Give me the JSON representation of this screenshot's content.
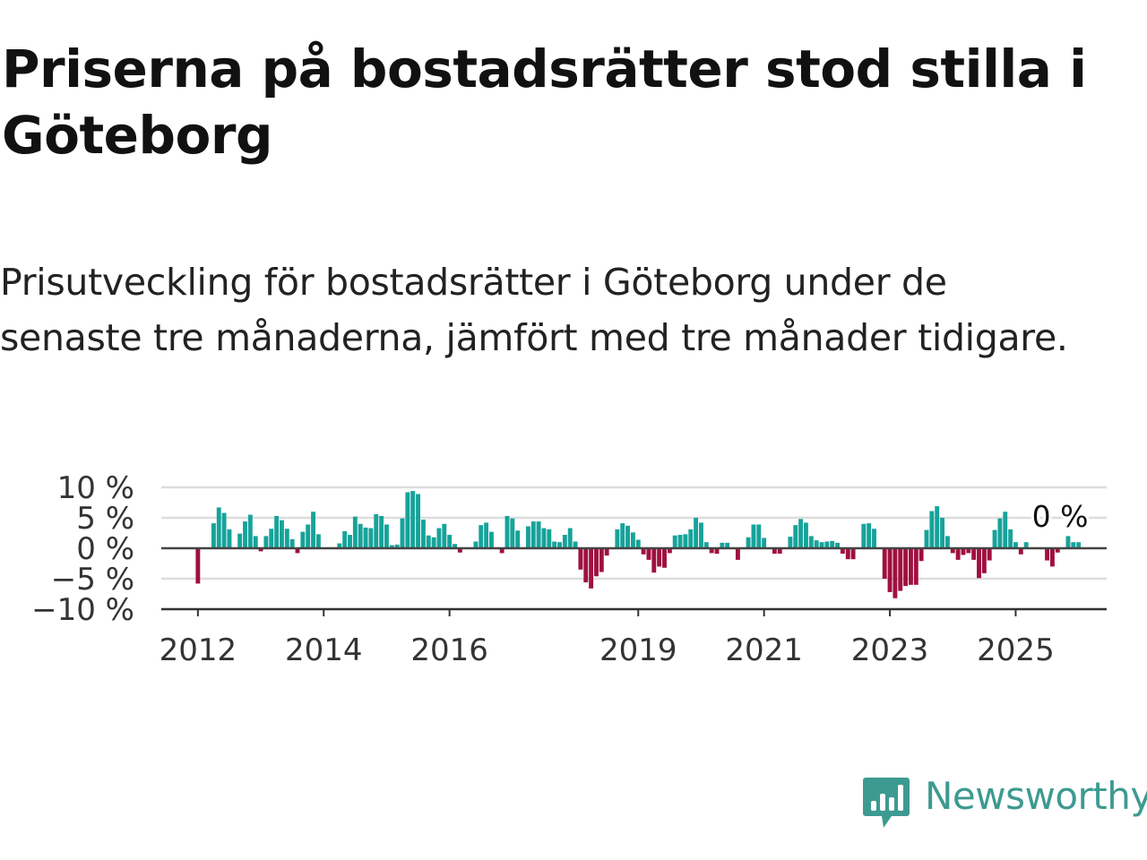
{
  "header": {
    "title": "Priserna på bostadsrätter stod stilla i Göteborg",
    "subtitle": "Prisutveckling för bostadsrätter i Göteborg under de senaste tre månaderna, jämfört med tre månader tidigare."
  },
  "brand": {
    "name": "Newsworthy",
    "color": "#3d9a90",
    "icon": "newsworthy-bar-chart-bubble-icon"
  },
  "colors": {
    "positive": "#16a39a",
    "negative": "#a0103f",
    "grid": "#dddddd",
    "zero_line": "#444444",
    "axis": "#333333"
  },
  "chart_data": {
    "type": "bar",
    "title": "",
    "xlabel": "",
    "ylabel": "",
    "ylim": [
      -10,
      10
    ],
    "y_ticks": [
      10,
      5,
      0,
      -5,
      -10
    ],
    "y_tick_labels": [
      "10 %",
      "5 %",
      "0 %",
      "−5 %",
      "−10 %"
    ],
    "x_ticks": [
      "2012-01",
      "2014-01",
      "2016-01",
      "2019-01",
      "2021-01",
      "2023-01",
      "2025-01"
    ],
    "x_tick_labels": [
      "2012",
      "2014",
      "2016",
      "2019",
      "2021",
      "2023",
      "2025"
    ],
    "grid": true,
    "last_value_label": "0 %",
    "start_month": "2011-10",
    "values": [
      0,
      0,
      0,
      -5.8,
      0,
      0,
      4.1,
      6.7,
      5.8,
      3.1,
      0,
      2.4,
      4.4,
      5.5,
      2.0,
      -0.5,
      2.0,
      3.2,
      5.3,
      4.6,
      3.2,
      1.5,
      -0.8,
      2.7,
      3.9,
      6.0,
      2.3,
      0,
      0,
      0,
      0.8,
      2.8,
      2.2,
      5.2,
      4.0,
      3.4,
      3.3,
      5.6,
      5.3,
      3.9,
      0.5,
      0.6,
      4.9,
      9.2,
      9.4,
      8.9,
      4.7,
      2.1,
      1.8,
      3.3,
      4.0,
      2.2,
      0.7,
      -0.7,
      0,
      0,
      1.1,
      3.8,
      4.2,
      2.7,
      0,
      -0.8,
      5.3,
      4.9,
      2.9,
      0.1,
      3.6,
      4.4,
      4.4,
      3.3,
      3.1,
      1.1,
      1.0,
      2.2,
      3.3,
      1.1,
      -3.5,
      -5.6,
      -6.6,
      -4.6,
      -3.9,
      -1.2,
      0,
      3.1,
      4.1,
      3.7,
      2.6,
      1.4,
      -1.0,
      -1.9,
      -4.0,
      -3.0,
      -3.2,
      -0.8,
      2.1,
      2.2,
      2.3,
      3.1,
      5.0,
      4.2,
      1.0,
      -0.8,
      -0.9,
      0.9,
      0.9,
      0,
      -1.9,
      0,
      1.8,
      3.9,
      3.9,
      1.7,
      0,
      -0.9,
      -0.9,
      0,
      1.9,
      3.8,
      4.8,
      4.2,
      2.0,
      1.3,
      1.0,
      1.1,
      1.2,
      0.9,
      -0.9,
      -1.8,
      -1.8,
      0,
      4.0,
      4.1,
      3.2,
      0,
      -5.0,
      -7.2,
      -8.2,
      -7.0,
      -6.2,
      -6.0,
      -6.0,
      -2.1,
      3.0,
      6.1,
      6.9,
      5.0,
      2.0,
      -0.8,
      -1.9,
      -1.1,
      -0.8,
      -1.9,
      -4.9,
      -4.1,
      -2.0,
      3.0,
      4.9,
      6.0,
      3.1,
      1.0,
      -1.0,
      1.0,
      0,
      0,
      0,
      -2.0,
      -3.0,
      -0.7,
      0,
      2.0,
      1.0,
      1.0
    ]
  }
}
